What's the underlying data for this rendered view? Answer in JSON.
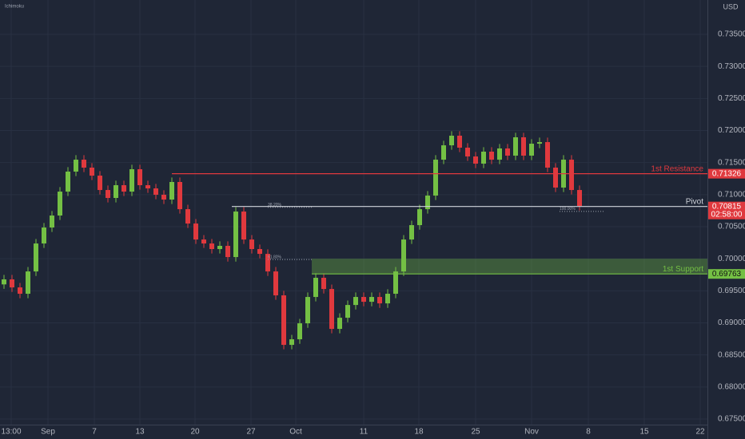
{
  "chart_data": {
    "type": "candlestick",
    "indicator": "Ichimoku",
    "currency": "USD",
    "up_color": "#74c044",
    "down_color": "#e0393e",
    "ylim": [
      0.67413,
      0.74035
    ],
    "yticks": [
      {
        "value": 0.675,
        "label": "0.67500"
      },
      {
        "value": 0.68,
        "label": "0.68000"
      },
      {
        "value": 0.685,
        "label": "0.68500"
      },
      {
        "value": 0.69,
        "label": "0.69000"
      },
      {
        "value": 0.695,
        "label": "0.69500"
      },
      {
        "value": 0.7,
        "label": "0.70000"
      },
      {
        "value": 0.705,
        "label": "0.70500"
      },
      {
        "value": 0.71,
        "label": "0.71000"
      },
      {
        "value": 0.715,
        "label": "0.71500"
      },
      {
        "value": 0.72,
        "label": "0.72000"
      },
      {
        "value": 0.725,
        "label": "0.72500"
      },
      {
        "value": 0.73,
        "label": "0.73000"
      },
      {
        "value": 0.735,
        "label": "0.73500"
      }
    ],
    "xlim": [
      -0.5,
      88
    ],
    "xticks": [
      {
        "value": 0.9,
        "label": "13:00"
      },
      {
        "value": 5.5,
        "label": "Sep"
      },
      {
        "value": 11.3,
        "label": "7"
      },
      {
        "value": 17,
        "label": "13"
      },
      {
        "value": 23.9,
        "label": "20"
      },
      {
        "value": 30.9,
        "label": "27"
      },
      {
        "value": 36.5,
        "label": "Oct"
      },
      {
        "value": 45,
        "label": "11"
      },
      {
        "value": 51.9,
        "label": "18"
      },
      {
        "value": 59,
        "label": "25"
      },
      {
        "value": 66,
        "label": "Nov"
      },
      {
        "value": 73.1,
        "label": "8"
      },
      {
        "value": 80.1,
        "label": "15"
      },
      {
        "value": 87.1,
        "label": "22"
      }
    ],
    "grid": true,
    "candles": [
      [
        0.696,
        0.69748,
        0.6953,
        0.69678
      ],
      [
        0.69678,
        0.69748,
        0.69483,
        0.69553
      ],
      [
        0.69553,
        0.69623,
        0.69384,
        0.69454
      ],
      [
        0.69454,
        0.69872,
        0.69384,
        0.69802
      ],
      [
        0.69802,
        0.70308,
        0.69732,
        0.70238
      ],
      [
        0.70238,
        0.70557,
        0.70168,
        0.70487
      ],
      [
        0.70487,
        0.70744,
        0.70417,
        0.70674
      ],
      [
        0.70674,
        0.71117,
        0.70604,
        0.71047
      ],
      [
        0.71047,
        0.71429,
        0.70977,
        0.71359
      ],
      [
        0.71359,
        0.71615,
        0.71289,
        0.71545
      ],
      [
        0.71545,
        0.71615,
        0.71351,
        0.71421
      ],
      [
        0.71421,
        0.71491,
        0.71226,
        0.71296
      ],
      [
        0.71296,
        0.71366,
        0.71002,
        0.71072
      ],
      [
        0.71072,
        0.71142,
        0.70878,
        0.70948
      ],
      [
        0.70948,
        0.71217,
        0.70878,
        0.71147
      ],
      [
        0.71147,
        0.71217,
        0.70977,
        0.71047
      ],
      [
        0.71047,
        0.71466,
        0.70977,
        0.71396
      ],
      [
        0.71396,
        0.71466,
        0.71077,
        0.71147
      ],
      [
        0.71147,
        0.71217,
        0.71027,
        0.71097
      ],
      [
        0.71097,
        0.71167,
        0.70928,
        0.70998
      ],
      [
        0.70998,
        0.71068,
        0.70853,
        0.70923
      ],
      [
        0.70923,
        0.71267,
        0.70853,
        0.71197
      ],
      [
        0.71197,
        0.71267,
        0.70703,
        0.70773
      ],
      [
        0.70773,
        0.70843,
        0.70479,
        0.70549
      ],
      [
        0.70549,
        0.70619,
        0.7023,
        0.703
      ],
      [
        0.703,
        0.7037,
        0.70168,
        0.70238
      ],
      [
        0.70238,
        0.70308,
        0.70081,
        0.70151
      ],
      [
        0.70151,
        0.70271,
        0.70081,
        0.70201
      ],
      [
        0.70201,
        0.70271,
        0.69956,
        0.70026
      ],
      [
        0.70026,
        0.70806,
        0.69956,
        0.70736
      ],
      [
        0.70736,
        0.70806,
        0.7023,
        0.703
      ],
      [
        0.703,
        0.7037,
        0.70081,
        0.70151
      ],
      [
        0.70151,
        0.70221,
        0.70006,
        0.70076
      ],
      [
        0.70076,
        0.70146,
        0.69732,
        0.69802
      ],
      [
        0.69802,
        0.69872,
        0.69359,
        0.69429
      ],
      [
        0.69429,
        0.69499,
        0.68587,
        0.68657
      ],
      [
        0.68657,
        0.68814,
        0.68587,
        0.68744
      ],
      [
        0.68744,
        0.69063,
        0.68674,
        0.68993
      ],
      [
        0.68993,
        0.69474,
        0.68923,
        0.69404
      ],
      [
        0.69404,
        0.69773,
        0.69334,
        0.69703
      ],
      [
        0.69703,
        0.69773,
        0.69458,
        0.69528
      ],
      [
        0.69528,
        0.69598,
        0.68836,
        0.68906
      ],
      [
        0.68906,
        0.6915,
        0.68836,
        0.6908
      ],
      [
        0.6908,
        0.69349,
        0.6901,
        0.69279
      ],
      [
        0.69279,
        0.69474,
        0.69209,
        0.69404
      ],
      [
        0.69404,
        0.69474,
        0.69259,
        0.69329
      ],
      [
        0.69329,
        0.69474,
        0.69259,
        0.69404
      ],
      [
        0.69404,
        0.69474,
        0.69234,
        0.69304
      ],
      [
        0.69304,
        0.69524,
        0.69234,
        0.69454
      ],
      [
        0.69454,
        0.69872,
        0.69384,
        0.69802
      ],
      [
        0.69802,
        0.7037,
        0.69732,
        0.703
      ],
      [
        0.703,
        0.70594,
        0.7023,
        0.70524
      ],
      [
        0.70524,
        0.70843,
        0.70454,
        0.70773
      ],
      [
        0.70773,
        0.71055,
        0.70703,
        0.70985
      ],
      [
        0.70985,
        0.71615,
        0.70915,
        0.71545
      ],
      [
        0.71545,
        0.71839,
        0.71475,
        0.71769
      ],
      [
        0.71769,
        0.71989,
        0.71699,
        0.71919
      ],
      [
        0.71919,
        0.71989,
        0.71662,
        0.71732
      ],
      [
        0.71732,
        0.71802,
        0.71525,
        0.71595
      ],
      [
        0.71595,
        0.71665,
        0.71413,
        0.71483
      ],
      [
        0.71483,
        0.7174,
        0.71413,
        0.7167
      ],
      [
        0.7167,
        0.7174,
        0.71475,
        0.71545
      ],
      [
        0.71545,
        0.7179,
        0.71475,
        0.7172
      ],
      [
        0.7172,
        0.7179,
        0.71538,
        0.71608
      ],
      [
        0.71608,
        0.71964,
        0.71538,
        0.71894
      ],
      [
        0.71894,
        0.71964,
        0.71538,
        0.71608
      ],
      [
        0.71608,
        0.71864,
        0.71538,
        0.71794
      ],
      [
        0.71794,
        0.71889,
        0.71724,
        0.71819
      ],
      [
        0.71819,
        0.71889,
        0.71351,
        0.71421
      ],
      [
        0.71421,
        0.71491,
        0.7104,
        0.7111
      ],
      [
        0.7111,
        0.71615,
        0.7104,
        0.71545
      ],
      [
        0.71545,
        0.71615,
        0.71002,
        0.71072
      ],
      [
        0.71072,
        0.71142,
        0.70753,
        0.70823
      ]
    ],
    "levels": [
      {
        "name": "1st Resistance",
        "value": 0.71326,
        "from": 21,
        "color": "#e0393e"
      },
      {
        "name": "Pivot",
        "value": 0.70815,
        "from": 28.5,
        "color": "#d1d4dc",
        "countdown": "02:58:00"
      },
      {
        "name": "1st Support",
        "value": 0.69763,
        "from": 38.5,
        "color": "#74c044"
      }
    ],
    "support_zone": {
      "color": "#74c044",
      "range": [
        0.69763,
        0.7
      ]
    },
    "fib_labels": [
      {
        "label": "38.20%",
        "x": 33,
        "value": 0.70815
      },
      {
        "label": "61.80%",
        "x": 33,
        "value": 0.7
      },
      {
        "label": "100.00%",
        "x": 69.5,
        "value": 0.7075
      }
    ]
  }
}
